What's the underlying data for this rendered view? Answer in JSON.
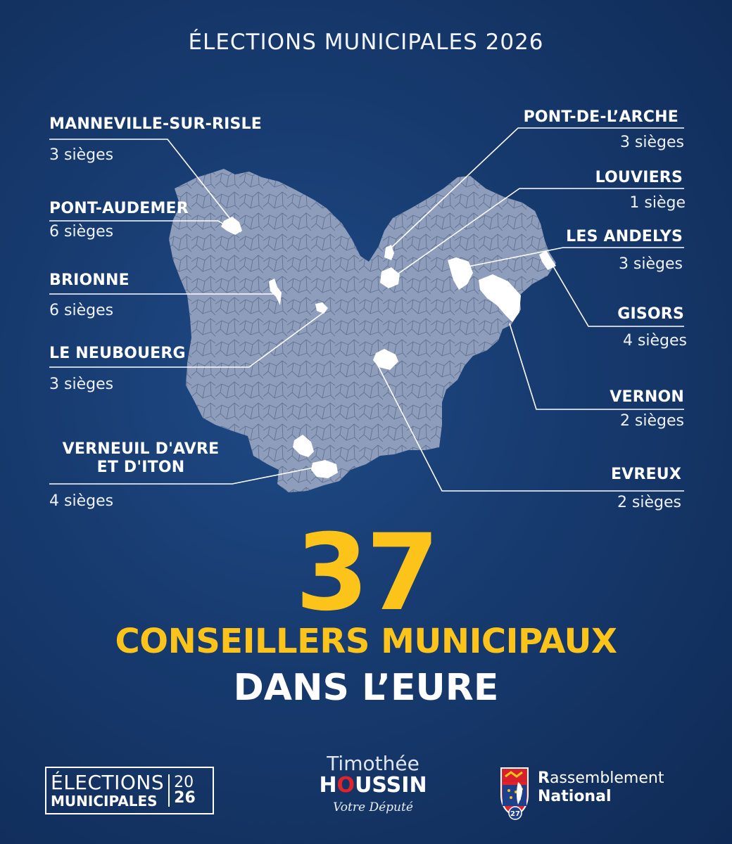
{
  "title": "ÉLECTIONS MUNICIPALES 2026",
  "communes": [
    {
      "name": "MANNEVILLE-SUR-RISLE",
      "seats": "3 sièges"
    },
    {
      "name": "PONT-AUDEMER",
      "seats": "6 sièges"
    },
    {
      "name": "BRIONNE",
      "seats": "6 sièges"
    },
    {
      "name": "LE NEUBOUERG",
      "seats": "3 sièges"
    },
    {
      "name": "VERNEUIL D'AVRE ET D'ITON",
      "seats": "4 sièges"
    },
    {
      "name": "PONT-DE-L’ARCHE",
      "seats": "3 sièges"
    },
    {
      "name": "LOUVIERS",
      "seats": "1 siège"
    },
    {
      "name": "LES ANDELYS",
      "seats": "3 sièges"
    },
    {
      "name": "GISORS",
      "seats": "4 sièges"
    },
    {
      "name": "VERNON",
      "seats": "2 sièges"
    },
    {
      "name": "EVREUX",
      "seats": "2 sièges"
    }
  ],
  "total": "37",
  "subtitle_line1": "CONSEILLERS MUNICIPAUX",
  "subtitle_line2": "DANS L’EURE",
  "footer": {
    "elections_logo": {
      "line1": "ÉLECTIONS",
      "line2": "MUNICIPALES",
      "year_top": "20",
      "year_bottom": "26"
    },
    "candidate": {
      "first_name": "Timothée",
      "last_name_a": "H",
      "last_name_o": "O",
      "last_name_b": "USSIN",
      "tagline": "Votre Député"
    },
    "party": {
      "line1_first": "R",
      "line1_rest": "assemblement",
      "line2": "National",
      "badge": "27"
    }
  },
  "colors": {
    "accent_yellow": "#fcc31b",
    "background": "#173a6e",
    "map_fill": "#8e9dbb",
    "highlight": "#ffffff"
  }
}
